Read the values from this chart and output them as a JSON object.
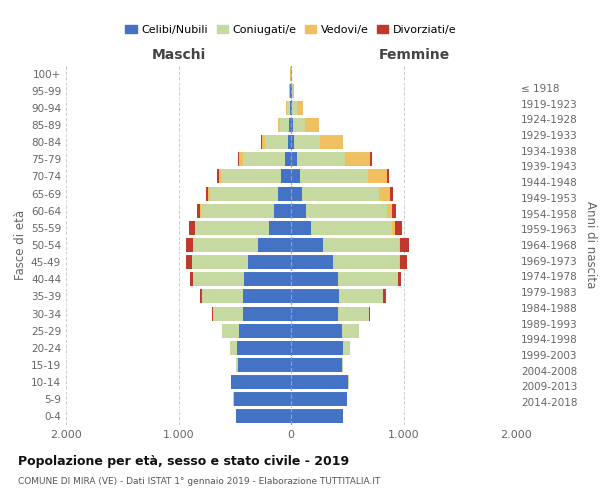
{
  "age_groups": [
    "0-4",
    "5-9",
    "10-14",
    "15-19",
    "20-24",
    "25-29",
    "30-34",
    "35-39",
    "40-44",
    "45-49",
    "50-54",
    "55-59",
    "60-64",
    "65-69",
    "70-74",
    "75-79",
    "80-84",
    "85-89",
    "90-94",
    "95-99",
    "100+"
  ],
  "birth_years": [
    "2014-2018",
    "2009-2013",
    "2004-2008",
    "1999-2003",
    "1994-1998",
    "1989-1993",
    "1984-1988",
    "1979-1983",
    "1974-1978",
    "1969-1973",
    "1964-1968",
    "1959-1963",
    "1954-1958",
    "1949-1953",
    "1944-1948",
    "1939-1943",
    "1934-1938",
    "1929-1933",
    "1924-1928",
    "1919-1923",
    "≤ 1918"
  ],
  "maschi_celibi": [
    490,
    510,
    530,
    470,
    480,
    460,
    430,
    430,
    420,
    380,
    290,
    200,
    150,
    120,
    90,
    50,
    30,
    20,
    10,
    5,
    2
  ],
  "maschi_coniugati": [
    3,
    5,
    5,
    20,
    60,
    150,
    260,
    360,
    450,
    500,
    580,
    650,
    650,
    600,
    530,
    380,
    200,
    80,
    25,
    8,
    2
  ],
  "maschi_vedovi": [
    0,
    0,
    0,
    0,
    0,
    0,
    0,
    0,
    1,
    2,
    3,
    5,
    10,
    15,
    20,
    30,
    30,
    20,
    10,
    3,
    1
  ],
  "maschi_divorziati": [
    0,
    0,
    0,
    0,
    2,
    5,
    10,
    20,
    30,
    50,
    60,
    55,
    25,
    20,
    20,
    15,
    5,
    0,
    0,
    0,
    0
  ],
  "femmine_nubili": [
    460,
    500,
    510,
    450,
    465,
    450,
    420,
    430,
    420,
    370,
    280,
    175,
    130,
    100,
    80,
    50,
    30,
    20,
    10,
    5,
    2
  ],
  "femmine_coniugate": [
    2,
    2,
    3,
    15,
    55,
    150,
    270,
    390,
    530,
    590,
    680,
    720,
    720,
    680,
    600,
    430,
    230,
    100,
    45,
    10,
    2
  ],
  "femmine_vedove": [
    0,
    0,
    0,
    0,
    0,
    0,
    0,
    1,
    2,
    5,
    10,
    25,
    50,
    100,
    170,
    220,
    200,
    130,
    55,
    12,
    2
  ],
  "femmine_divorziate": [
    0,
    0,
    0,
    0,
    2,
    5,
    10,
    20,
    30,
    65,
    80,
    70,
    30,
    25,
    25,
    16,
    5,
    0,
    0,
    0,
    0
  ],
  "colors": {
    "celibi_nubili": "#4472C4",
    "coniugati": "#C5D9A0",
    "vedovi": "#F0C060",
    "divorziati": "#C0392B"
  },
  "xlim": 2000,
  "xticks": [
    -2000,
    -1000,
    0,
    1000,
    2000
  ],
  "xticklabels": [
    "2.000",
    "1.000",
    "0",
    "1.000",
    "2.000"
  ],
  "title": "Popolazione per età, sesso e stato civile - 2019",
  "subtitle": "COMUNE DI MIRA (VE) - Dati ISTAT 1° gennaio 2019 - Elaborazione TUTTITALIA.IT",
  "label_left": "Maschi",
  "label_right": "Femmine",
  "ylabel_left": "Fasce di età",
  "ylabel_right": "Anni di nascita",
  "bg_color": "#ffffff",
  "grid_color": "#cccccc",
  "legend_labels": [
    "Celibi/Nubili",
    "Coniugati/e",
    "Vedovi/e",
    "Divorziati/e"
  ]
}
